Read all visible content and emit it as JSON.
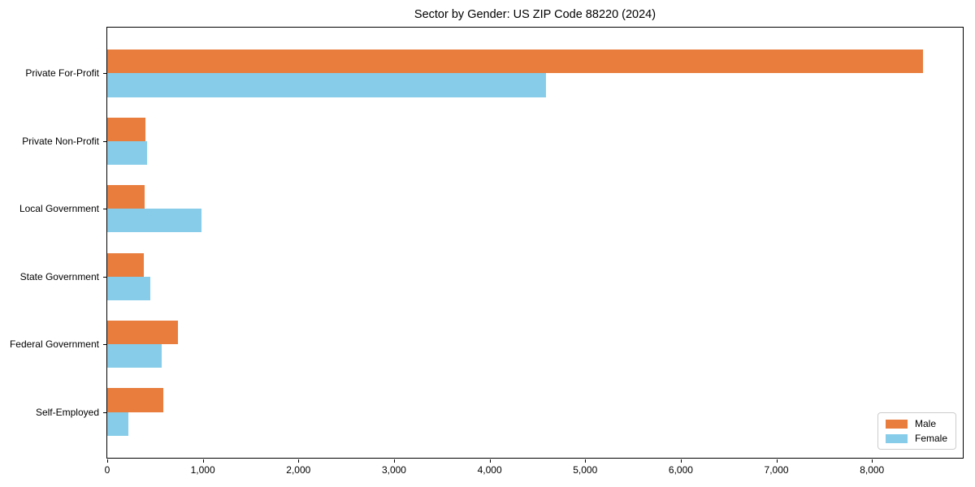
{
  "title": "Sector by Gender: US ZIP Code 88220 (2024)",
  "chart_data": {
    "type": "bar",
    "orientation": "horizontal",
    "title": "Sector by Gender: US ZIP Code 88220 (2024)",
    "categories": [
      "Private For-Profit",
      "Private Non-Profit",
      "Local Government",
      "State Government",
      "Federal Government",
      "Self-Employed"
    ],
    "series": [
      {
        "name": "Male",
        "color": "#e87d3e",
        "values": [
          8530,
          400,
          390,
          380,
          740,
          590
        ]
      },
      {
        "name": "Female",
        "color": "#87cde9",
        "values": [
          4590,
          420,
          990,
          450,
          570,
          220
        ]
      }
    ],
    "xlabel": "",
    "ylabel": "",
    "xlim": [
      0,
      8950
    ],
    "xticks": [
      0,
      1000,
      2000,
      3000,
      4000,
      5000,
      6000,
      7000,
      8000
    ],
    "xtick_labels": [
      "0",
      "1,000",
      "2,000",
      "3,000",
      "4,000",
      "5,000",
      "6,000",
      "7,000",
      "8,000"
    ],
    "grid": false,
    "legend_position": "lower right",
    "bar_height_fraction": 0.35,
    "axis_color": "#000000",
    "background_color": "#ffffff"
  }
}
